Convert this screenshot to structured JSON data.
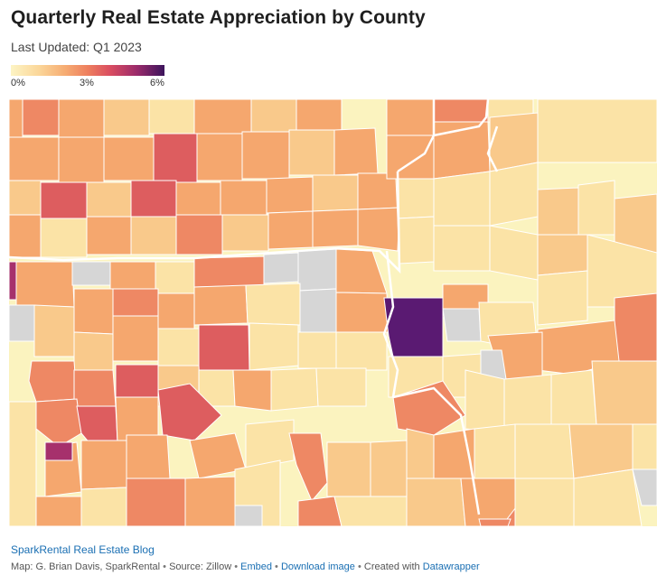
{
  "header": {
    "title": "Quarterly Real Estate Appreciation by County",
    "subtitle": "Last Updated: Q1 2023"
  },
  "legend": {
    "labels": [
      "0%",
      "3%",
      "6%"
    ],
    "colors": [
      "#fdf4c4",
      "#f6ad73",
      "#ee7f5e",
      "#d94c61",
      "#3c145c"
    ]
  },
  "map": {
    "colors": {
      "light": "#fbf3bf",
      "pale": "#fbe3a6",
      "peach": "#f9c98b",
      "orange": "#f5a76e",
      "salmon": "#ee8864",
      "red": "#dd5d5f",
      "magenta": "#a6316c",
      "purple": "#5a1a72",
      "nodata": "#d6d6d6",
      "border": "#ffffff"
    }
  },
  "footer": {
    "source_link": "SparkRental Real Estate Blog",
    "map_credit": "Map: G. Brian Davis, SparkRental",
    "source_text": "Source: Zillow",
    "embed_link": "Embed",
    "download_link": "Download image",
    "created_with": "Created with",
    "datawrapper_link": "Datawrapper"
  }
}
